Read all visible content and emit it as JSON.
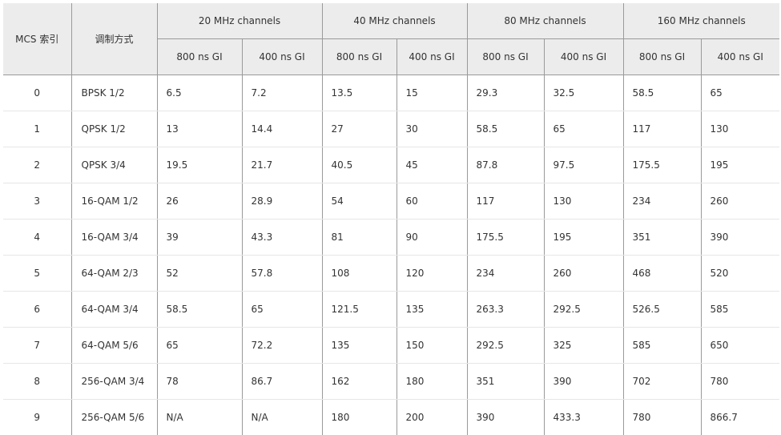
{
  "header": {
    "mcs_index": "MCS 索引",
    "modulation": "调制方式",
    "groups": [
      "20 MHz channels",
      "40 MHz channels",
      "80 MHz channels",
      "160 MHz channels"
    ],
    "gi_long": "800 ns GI",
    "gi_short": "400 ns GI"
  },
  "rows": [
    {
      "mcs": "0",
      "mod": "BPSK 1/2",
      "v": [
        "6.5",
        "7.2",
        "13.5",
        "15",
        "29.3",
        "32.5",
        "58.5",
        "65"
      ]
    },
    {
      "mcs": "1",
      "mod": "QPSK 1/2",
      "v": [
        "13",
        "14.4",
        "27",
        "30",
        "58.5",
        "65",
        "117",
        "130"
      ]
    },
    {
      "mcs": "2",
      "mod": "QPSK 3/4",
      "v": [
        "19.5",
        "21.7",
        "40.5",
        "45",
        "87.8",
        "97.5",
        "175.5",
        "195"
      ]
    },
    {
      "mcs": "3",
      "mod": "16-QAM 1/2",
      "v": [
        "26",
        "28.9",
        "54",
        "60",
        "117",
        "130",
        "234",
        "260"
      ]
    },
    {
      "mcs": "4",
      "mod": "16-QAM 3/4",
      "v": [
        "39",
        "43.3",
        "81",
        "90",
        "175.5",
        "195",
        "351",
        "390"
      ]
    },
    {
      "mcs": "5",
      "mod": "64-QAM 2/3",
      "v": [
        "52",
        "57.8",
        "108",
        "120",
        "234",
        "260",
        "468",
        "520"
      ]
    },
    {
      "mcs": "6",
      "mod": "64-QAM 3/4",
      "v": [
        "58.5",
        "65",
        "121.5",
        "135",
        "263.3",
        "292.5",
        "526.5",
        "585"
      ]
    },
    {
      "mcs": "7",
      "mod": "64-QAM 5/6",
      "v": [
        "65",
        "72.2",
        "135",
        "150",
        "292.5",
        "325",
        "585",
        "650"
      ]
    },
    {
      "mcs": "8",
      "mod": "256-QAM 3/4",
      "v": [
        "78",
        "86.7",
        "162",
        "180",
        "351",
        "390",
        "702",
        "780"
      ]
    },
    {
      "mcs": "9",
      "mod": "256-QAM 5/6",
      "v": [
        "N/A",
        "N/A",
        "180",
        "200",
        "390",
        "433.3",
        "780",
        "866.7"
      ]
    }
  ]
}
